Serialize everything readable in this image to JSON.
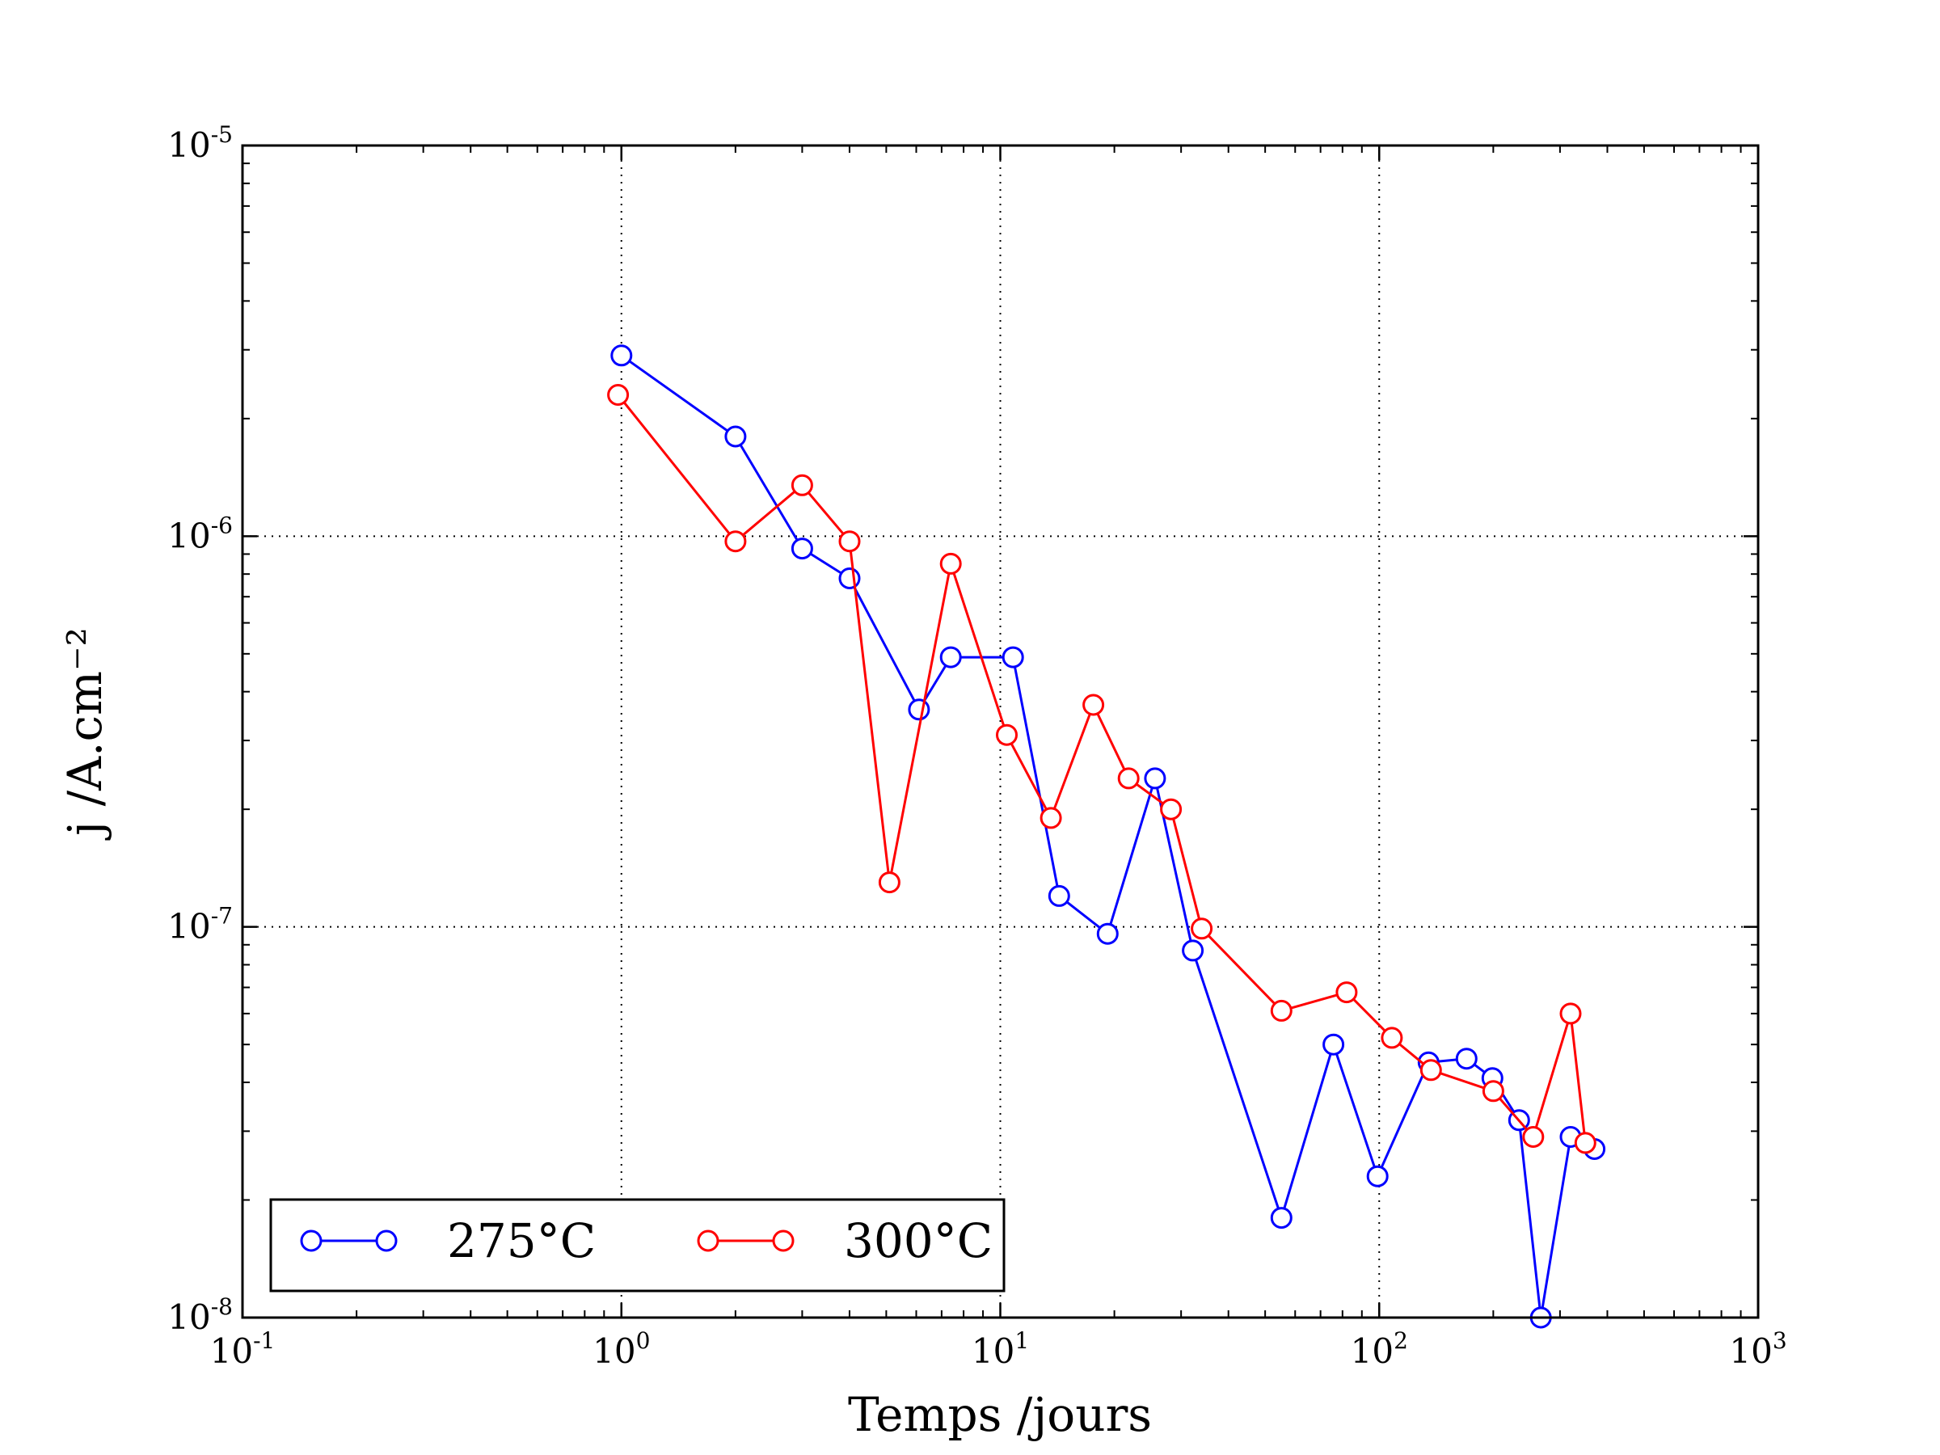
{
  "chart_data": {
    "type": "line",
    "xlabel": "Temps /jours",
    "ylabel": "j /A.cm⁻²",
    "x_scale": "log",
    "y_scale": "log",
    "xlim": [
      0.1,
      1000
    ],
    "ylim": [
      1e-08,
      1e-05
    ],
    "x_ticks": [
      {
        "value": 0.1,
        "base": "10",
        "exp": "-1"
      },
      {
        "value": 1,
        "base": "10",
        "exp": "0"
      },
      {
        "value": 10,
        "base": "10",
        "exp": "1"
      },
      {
        "value": 100,
        "base": "10",
        "exp": "2"
      },
      {
        "value": 1000,
        "base": "10",
        "exp": "3"
      }
    ],
    "y_ticks": [
      {
        "value": 1e-08,
        "base": "10",
        "exp": "-8"
      },
      {
        "value": 1e-07,
        "base": "10",
        "exp": "-7"
      },
      {
        "value": 1e-06,
        "base": "10",
        "exp": "-6"
      },
      {
        "value": 1e-05,
        "base": "10",
        "exp": "-5"
      }
    ],
    "grid": "dotted, major ticks",
    "legend": {
      "placement": "lower-left",
      "columns": 2
    },
    "series": [
      {
        "name": "275°C",
        "color": "#0000ff",
        "marker": "open-circle",
        "points": [
          [
            1.0,
            2.9e-06
          ],
          [
            2.0,
            1.8e-06
          ],
          [
            3.0,
            9.3e-07
          ],
          [
            4.0,
            7.8e-07
          ],
          [
            6.1,
            3.6e-07
          ],
          [
            7.4,
            4.9e-07
          ],
          [
            10.8,
            4.9e-07
          ],
          [
            14.3,
            1.2e-07
          ],
          [
            19.2,
            9.6e-08
          ],
          [
            25.6,
            2.4e-07
          ],
          [
            32.2,
            8.7e-08
          ],
          [
            55.2,
            1.8e-08
          ],
          [
            75.7,
            5e-08
          ],
          [
            99.0,
            2.3e-08
          ],
          [
            135.0,
            4.5e-08
          ],
          [
            170.0,
            4.6e-08
          ],
          [
            199.0,
            4.1e-08
          ],
          [
            234.0,
            3.2e-08
          ],
          [
            267.0,
            1e-08
          ],
          [
            320.0,
            2.9e-08
          ],
          [
            370.0,
            2.7e-08
          ]
        ]
      },
      {
        "name": "300°C",
        "color": "#ff0000",
        "marker": "open-circle",
        "points": [
          [
            0.98,
            2.3e-06
          ],
          [
            2.0,
            9.7e-07
          ],
          [
            3.0,
            1.35e-06
          ],
          [
            4.0,
            9.7e-07
          ],
          [
            5.1,
            1.3e-07
          ],
          [
            7.4,
            8.5e-07
          ],
          [
            10.4,
            3.1e-07
          ],
          [
            13.6,
            1.9e-07
          ],
          [
            17.6,
            3.7e-07
          ],
          [
            21.8,
            2.4e-07
          ],
          [
            28.2,
            2e-07
          ],
          [
            34.0,
            9.9e-08
          ],
          [
            55.2,
            6.1e-08
          ],
          [
            82.0,
            6.8e-08
          ],
          [
            108.0,
            5.2e-08
          ],
          [
            137.0,
            4.3e-08
          ],
          [
            200.0,
            3.8e-08
          ],
          [
            255.0,
            2.9e-08
          ],
          [
            320.0,
            6e-08
          ],
          [
            350.0,
            2.8e-08
          ]
        ]
      }
    ]
  }
}
